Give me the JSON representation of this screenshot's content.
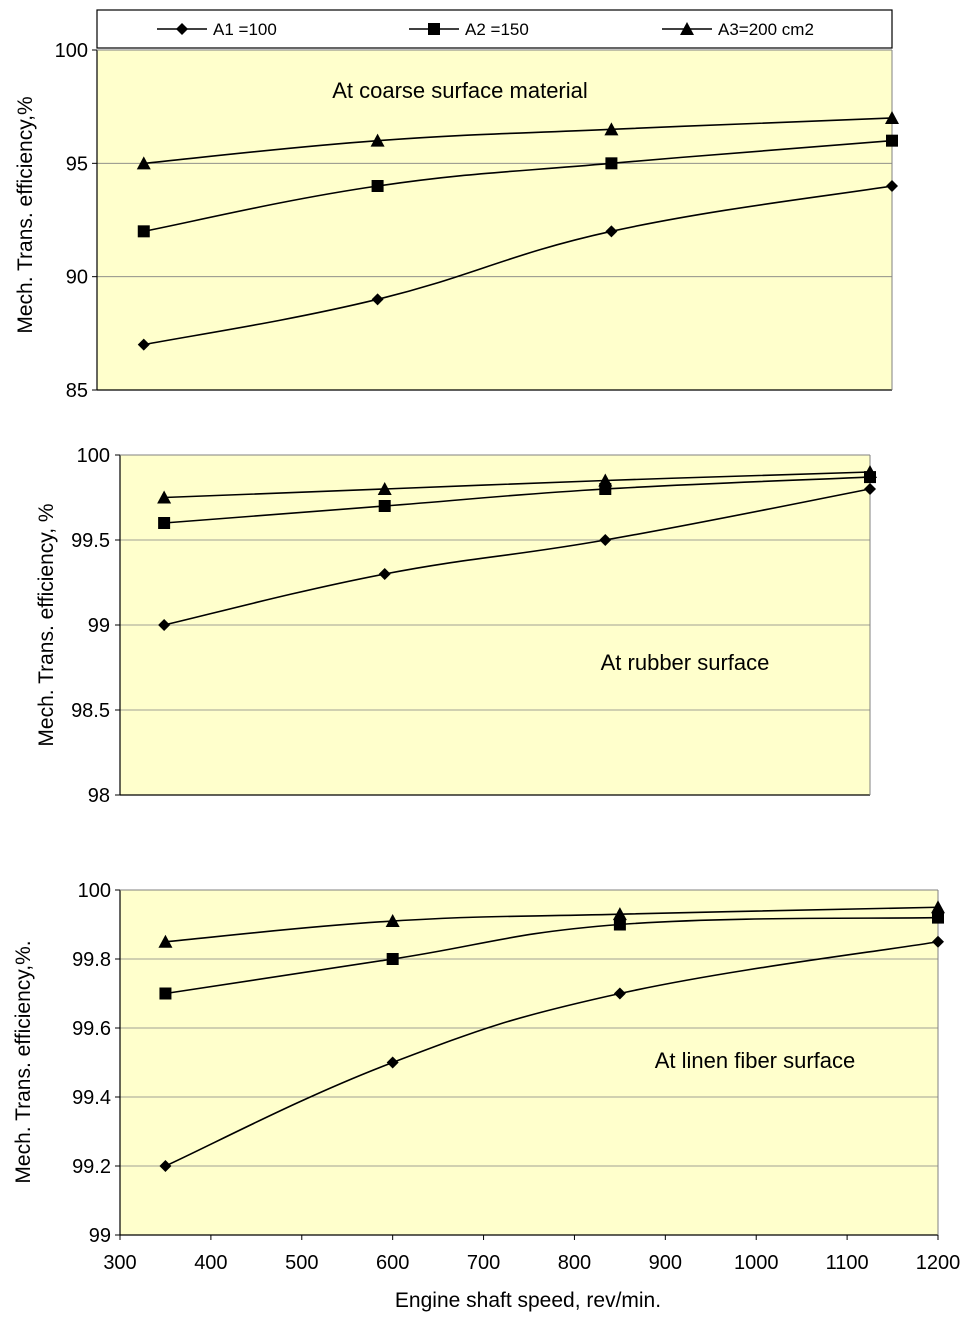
{
  "legend": {
    "items": [
      {
        "label": "A1 =100",
        "marker": "diamond"
      },
      {
        "label": "A2 =150",
        "marker": "square"
      },
      {
        "label": "A3=200 cm2",
        "marker": "triangle"
      }
    ]
  },
  "xaxis": {
    "label": "Engine shaft speed, rev/min."
  },
  "colors": {
    "plot_bg": "#FFFFCC",
    "line": "#000000",
    "grid": "#808080"
  },
  "chart_data": [
    {
      "type": "line",
      "annotation": "At coarse surface material",
      "ylabel": "Mech. Trans. efficiency,%",
      "ylim": [
        85,
        100
      ],
      "yticks": [
        "85",
        "90",
        "95",
        "100"
      ],
      "xlim": [
        300,
        1200
      ],
      "x": [
        350,
        600,
        850,
        1150
      ],
      "series": [
        {
          "name": "A1 =100",
          "values": [
            87,
            89,
            92,
            94
          ]
        },
        {
          "name": "A2 =150",
          "values": [
            92,
            94,
            95,
            96
          ]
        },
        {
          "name": "A3=200 cm2",
          "values": [
            95,
            96,
            96.5,
            97
          ]
        }
      ]
    },
    {
      "type": "line",
      "annotation": "At rubber surface",
      "ylabel": "Mech. Trans. efficiency, %",
      "ylim": [
        98,
        100
      ],
      "yticks": [
        "98",
        "98.5",
        "99",
        "99.5",
        "100"
      ],
      "xlim": [
        300,
        1200
      ],
      "x": [
        350,
        600,
        850,
        1150
      ],
      "series": [
        {
          "name": "A1 =100",
          "values": [
            99,
            99.3,
            99.5,
            99.8
          ]
        },
        {
          "name": "A2 =150",
          "values": [
            99.6,
            99.7,
            99.8,
            99.87
          ]
        },
        {
          "name": "A3=200 cm2",
          "values": [
            99.75,
            99.8,
            99.85,
            99.9
          ]
        }
      ]
    },
    {
      "type": "line",
      "annotation": "At linen fiber surface",
      "ylabel": "Mech. Trans. efficiency,%.",
      "ylim": [
        99,
        100
      ],
      "yticks": [
        "99",
        "99.2",
        "99.4",
        "99.6",
        "99.8",
        "100"
      ],
      "xlim": [
        300,
        1200
      ],
      "xticks": [
        "300",
        "400",
        "500",
        "600",
        "700",
        "800",
        "900",
        "1000",
        "1100",
        "1200"
      ],
      "x": [
        350,
        600,
        850,
        1200
      ],
      "series": [
        {
          "name": "A1 =100",
          "values": [
            99.2,
            99.5,
            99.7,
            99.85
          ]
        },
        {
          "name": "A2 =150",
          "values": [
            99.7,
            99.8,
            99.9,
            99.92
          ]
        },
        {
          "name": "A3=200 cm2",
          "values": [
            99.85,
            99.91,
            99.93,
            99.95
          ]
        }
      ]
    }
  ]
}
